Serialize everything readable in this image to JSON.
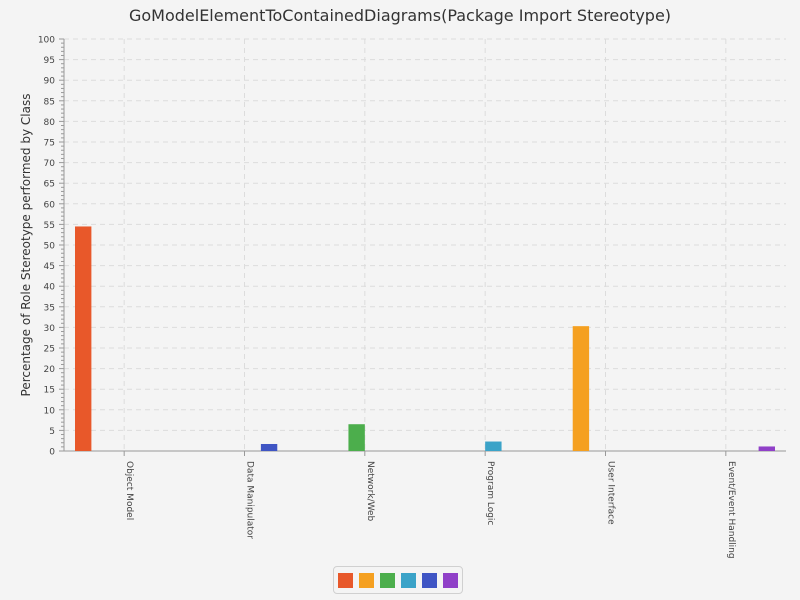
{
  "chart_data": {
    "type": "bar",
    "title": "GoModelElementToContainedDiagrams(Package Import Stereotype)",
    "ylabel": "Percentage of Role Stereotype performed by Class",
    "xlabel": "",
    "ylim": [
      0,
      100
    ],
    "yticks": [
      0,
      5,
      10,
      15,
      20,
      25,
      30,
      35,
      40,
      45,
      50,
      55,
      60,
      65,
      70,
      75,
      80,
      85,
      90,
      95,
      100
    ],
    "grid": true,
    "legend_position": "bottom",
    "categories": [
      "Object Model",
      "Data Manipulator",
      "Network/Web",
      "Program Logic",
      "User Interface",
      "Event/Event Handling"
    ],
    "series": [
      {
        "color": "#e8582a",
        "values": [
          54.5,
          0,
          0,
          0,
          0,
          0
        ]
      },
      {
        "color": "#f5a020",
        "values": [
          0,
          0,
          0,
          0,
          30.3,
          0
        ]
      },
      {
        "color": "#4cae4c",
        "values": [
          0,
          0,
          6.5,
          0,
          0,
          0
        ]
      },
      {
        "color": "#3ba3c8",
        "values": [
          0,
          0,
          0,
          2.3,
          0,
          0
        ]
      },
      {
        "color": "#3f55c4",
        "values": [
          0,
          1.7,
          0,
          0,
          0,
          0
        ]
      },
      {
        "color": "#9040c8",
        "values": [
          0,
          0,
          0,
          0,
          0,
          1.1
        ]
      }
    ]
  }
}
